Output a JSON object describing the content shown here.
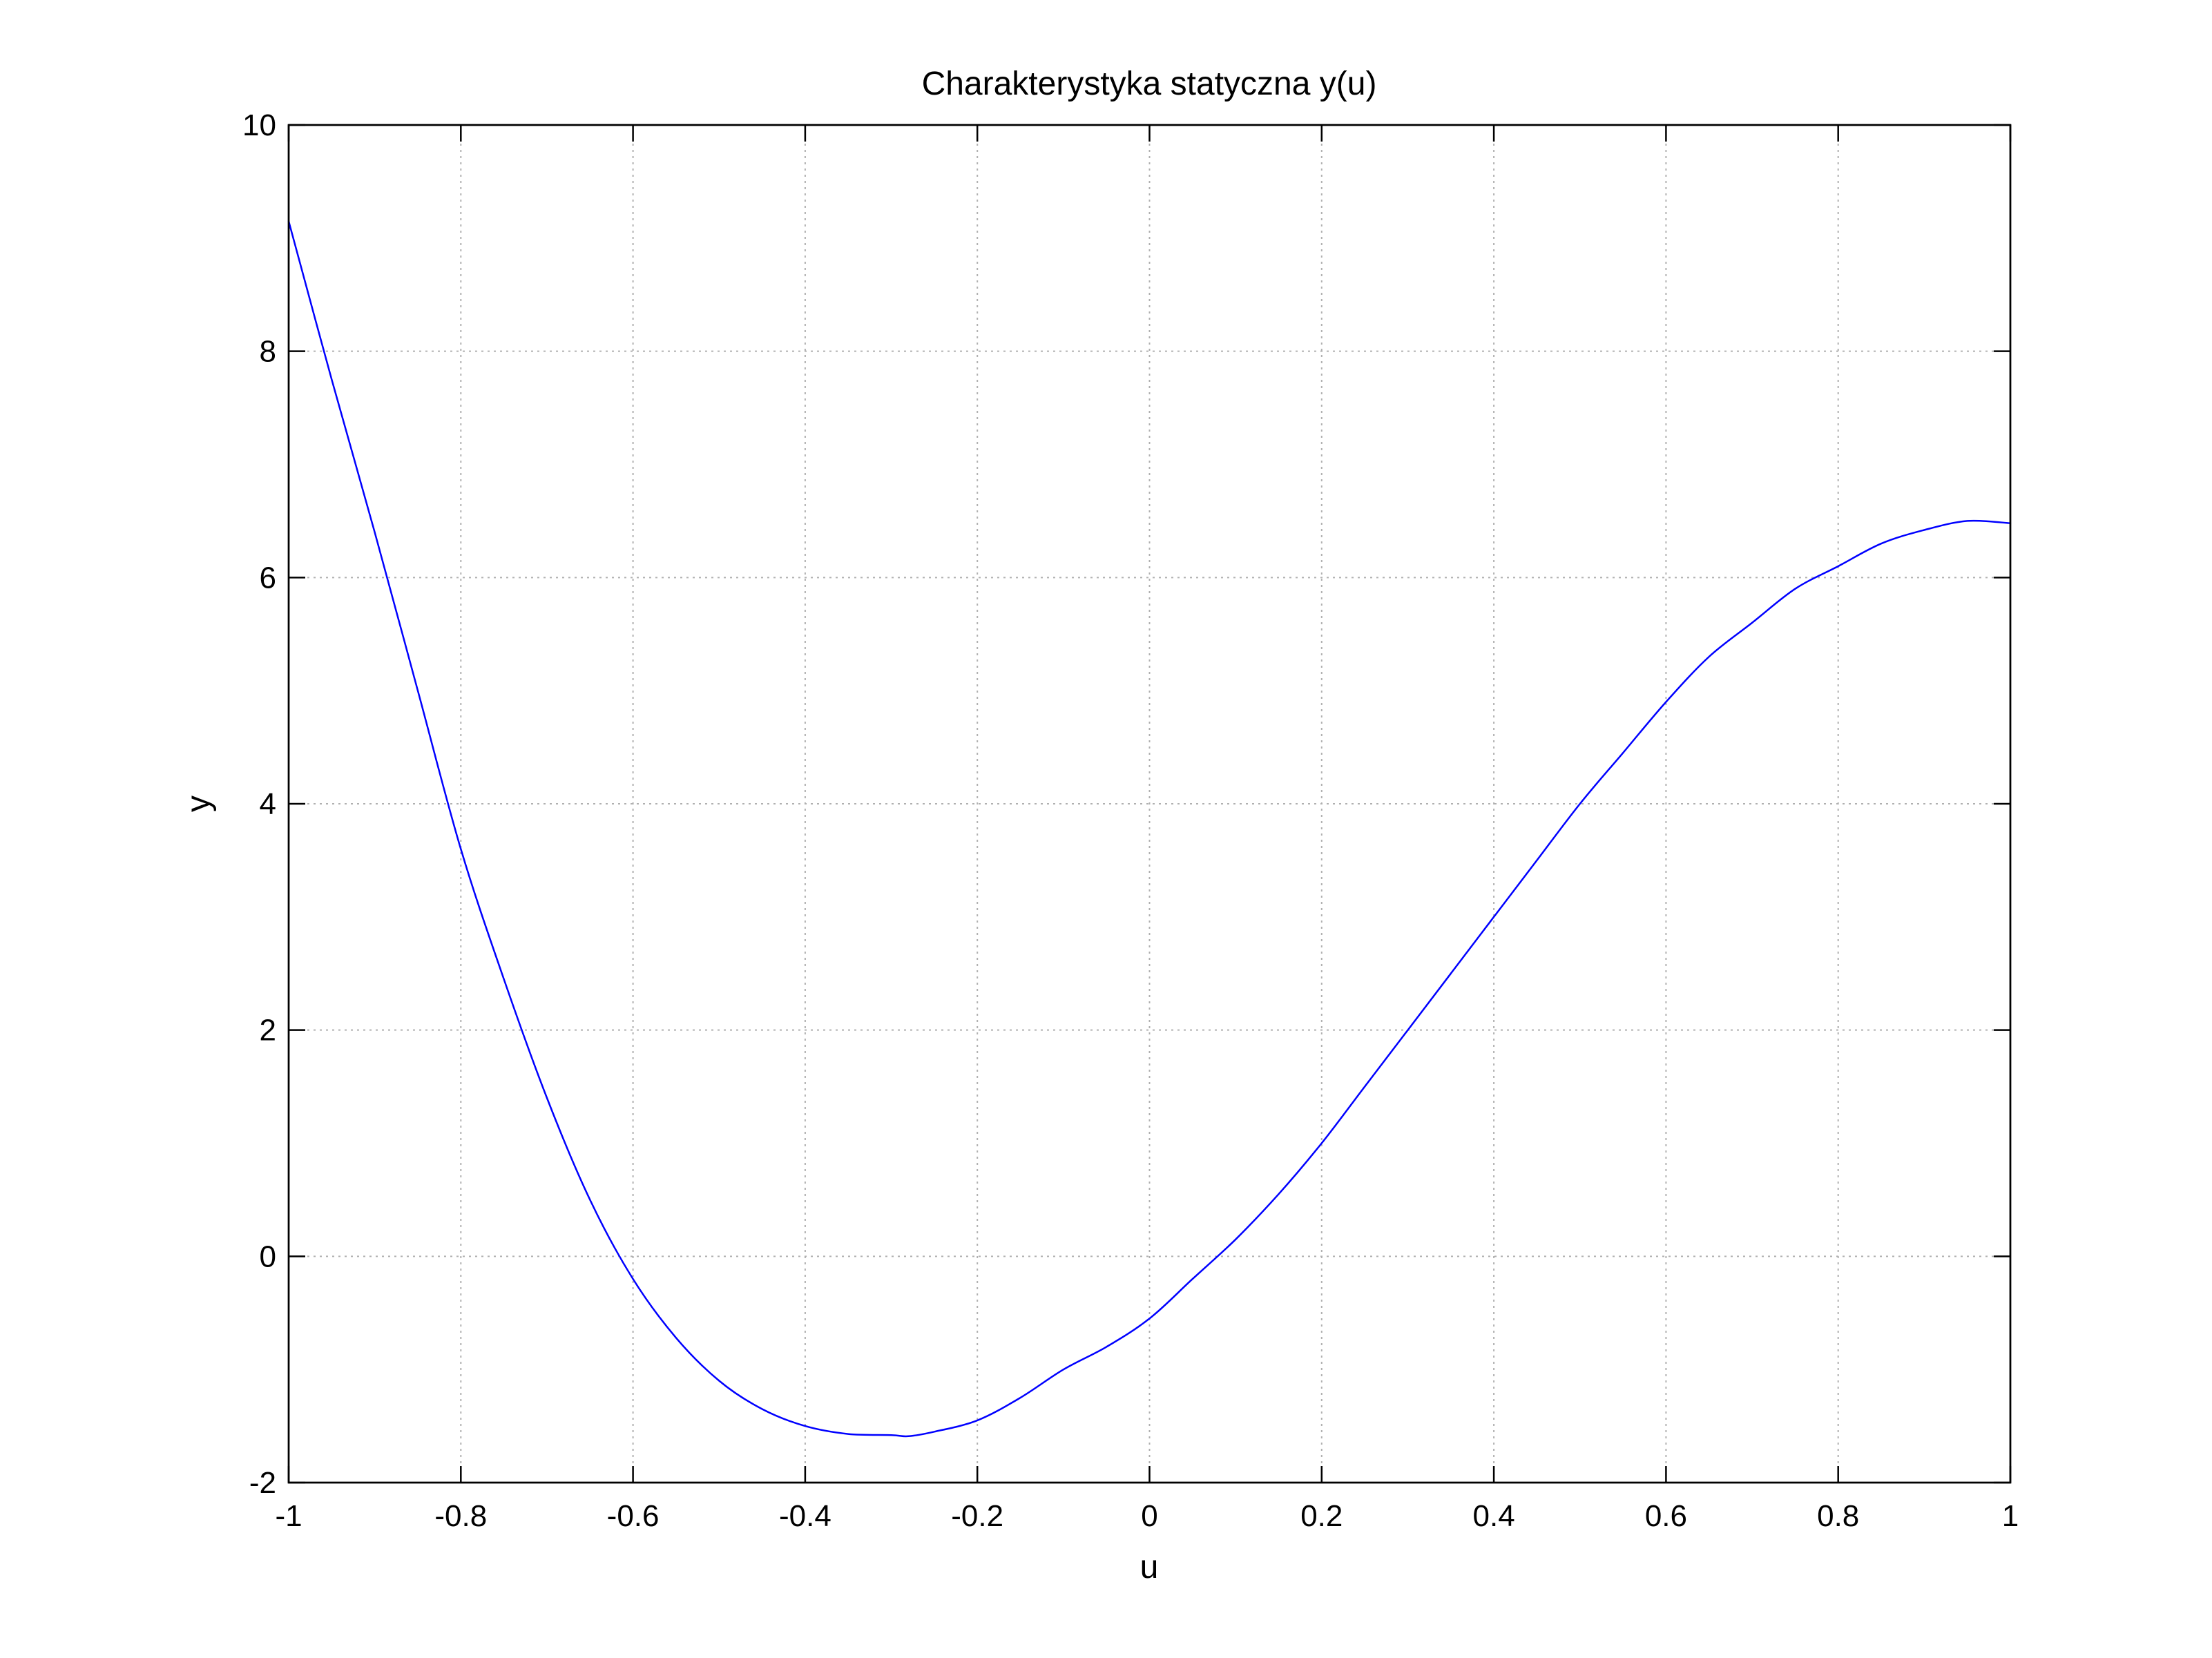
{
  "chart_data": {
    "type": "line",
    "title": "Charakterystyka statyczna y(u)",
    "xlabel": "u",
    "ylabel": "y",
    "xlim": [
      -1,
      1
    ],
    "ylim": [
      -2,
      10
    ],
    "xticks": [
      -1,
      -0.8,
      -0.6,
      -0.4,
      -0.2,
      0,
      0.2,
      0.4,
      0.6,
      0.8,
      1
    ],
    "xtick_labels": [
      "-1",
      "-0.8",
      "-0.6",
      "-0.4",
      "-0.2",
      "0",
      "0.2",
      "0.4",
      "0.6",
      "0.8",
      "1"
    ],
    "yticks": [
      -2,
      0,
      2,
      4,
      6,
      8,
      10
    ],
    "ytick_labels": [
      "-2",
      "0",
      "2",
      "4",
      "6",
      "8",
      "10"
    ],
    "grid": true,
    "series": [
      {
        "color": "#0000ff",
        "x": [
          -1.0,
          -0.95,
          -0.9,
          -0.85,
          -0.8,
          -0.75,
          -0.7,
          -0.65,
          -0.6,
          -0.55,
          -0.5,
          -0.45,
          -0.4,
          -0.35,
          -0.3,
          -0.28,
          -0.25,
          -0.2,
          -0.15,
          -0.1,
          -0.05,
          0.0,
          0.05,
          0.1,
          0.15,
          0.2,
          0.25,
          0.3,
          0.35,
          0.4,
          0.45,
          0.5,
          0.55,
          0.6,
          0.65,
          0.7,
          0.75,
          0.8,
          0.85,
          0.9,
          0.95,
          1.0
        ],
        "y": [
          9.15,
          7.75,
          6.4,
          5.0,
          3.6,
          2.45,
          1.4,
          0.5,
          -0.2,
          -0.72,
          -1.1,
          -1.35,
          -1.5,
          -1.57,
          -1.58,
          -1.59,
          -1.55,
          -1.45,
          -1.25,
          -1.0,
          -0.8,
          -0.55,
          -0.2,
          0.15,
          0.55,
          1.0,
          1.5,
          2.0,
          2.5,
          3.0,
          3.5,
          4.0,
          4.45,
          4.9,
          5.3,
          5.6,
          5.9,
          6.1,
          6.3,
          6.42,
          6.5,
          6.48
        ]
      }
    ]
  }
}
